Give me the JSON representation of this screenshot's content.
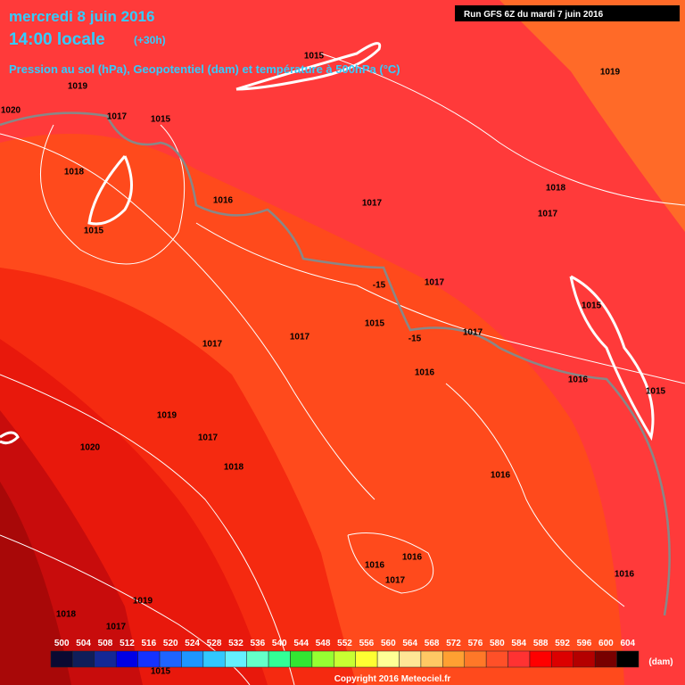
{
  "header": {
    "date": "mercredi 8 juin 2016",
    "time": "14:00 locale",
    "offset": "(+30h)",
    "subtitle": "Pression au sol (hPa), Geopotentiel (dam) et température à 500hPa (°C)"
  },
  "run": "Run GFS 6Z du mardi 7 juin 2016",
  "isobar_labels": [
    "1015",
    "1019",
    "1019",
    "1020",
    "1017",
    "1015",
    "1018",
    "1018",
    "1016",
    "1017",
    "1017",
    "1015",
    "1017",
    "1015",
    "1017",
    "1017",
    "1015",
    "1017",
    "1016",
    "1016",
    "1015",
    "1019",
    "1017",
    "1020",
    "1018",
    "1016",
    "1016",
    "1016",
    "1017",
    "1016",
    "1019",
    "1018",
    "1017",
    "1015"
  ],
  "temperature_labels": [
    "-15",
    "-15"
  ],
  "scale": {
    "values": [
      500,
      504,
      508,
      512,
      516,
      520,
      524,
      528,
      532,
      536,
      540,
      544,
      548,
      552,
      556,
      560,
      564,
      568,
      572,
      576,
      580,
      584,
      588,
      592,
      596,
      600,
      604
    ],
    "colors": [
      "#0a0a32",
      "#0f1e5a",
      "#142896",
      "#0000e6",
      "#1432ff",
      "#1e64ff",
      "#1e96ff",
      "#32c8ff",
      "#64f0ff",
      "#64ffc8",
      "#32ff96",
      "#32e632",
      "#96ff32",
      "#c8ff32",
      "#ffff32",
      "#ffff96",
      "#ffe696",
      "#ffc864",
      "#ffa032",
      "#ff7828",
      "#ff5028",
      "#ff3232",
      "#ff0000",
      "#dc0000",
      "#b40000",
      "#780000",
      "#000000"
    ],
    "unit": "(dam)"
  },
  "copyright": "Copyright 2016 Meteociel.fr"
}
